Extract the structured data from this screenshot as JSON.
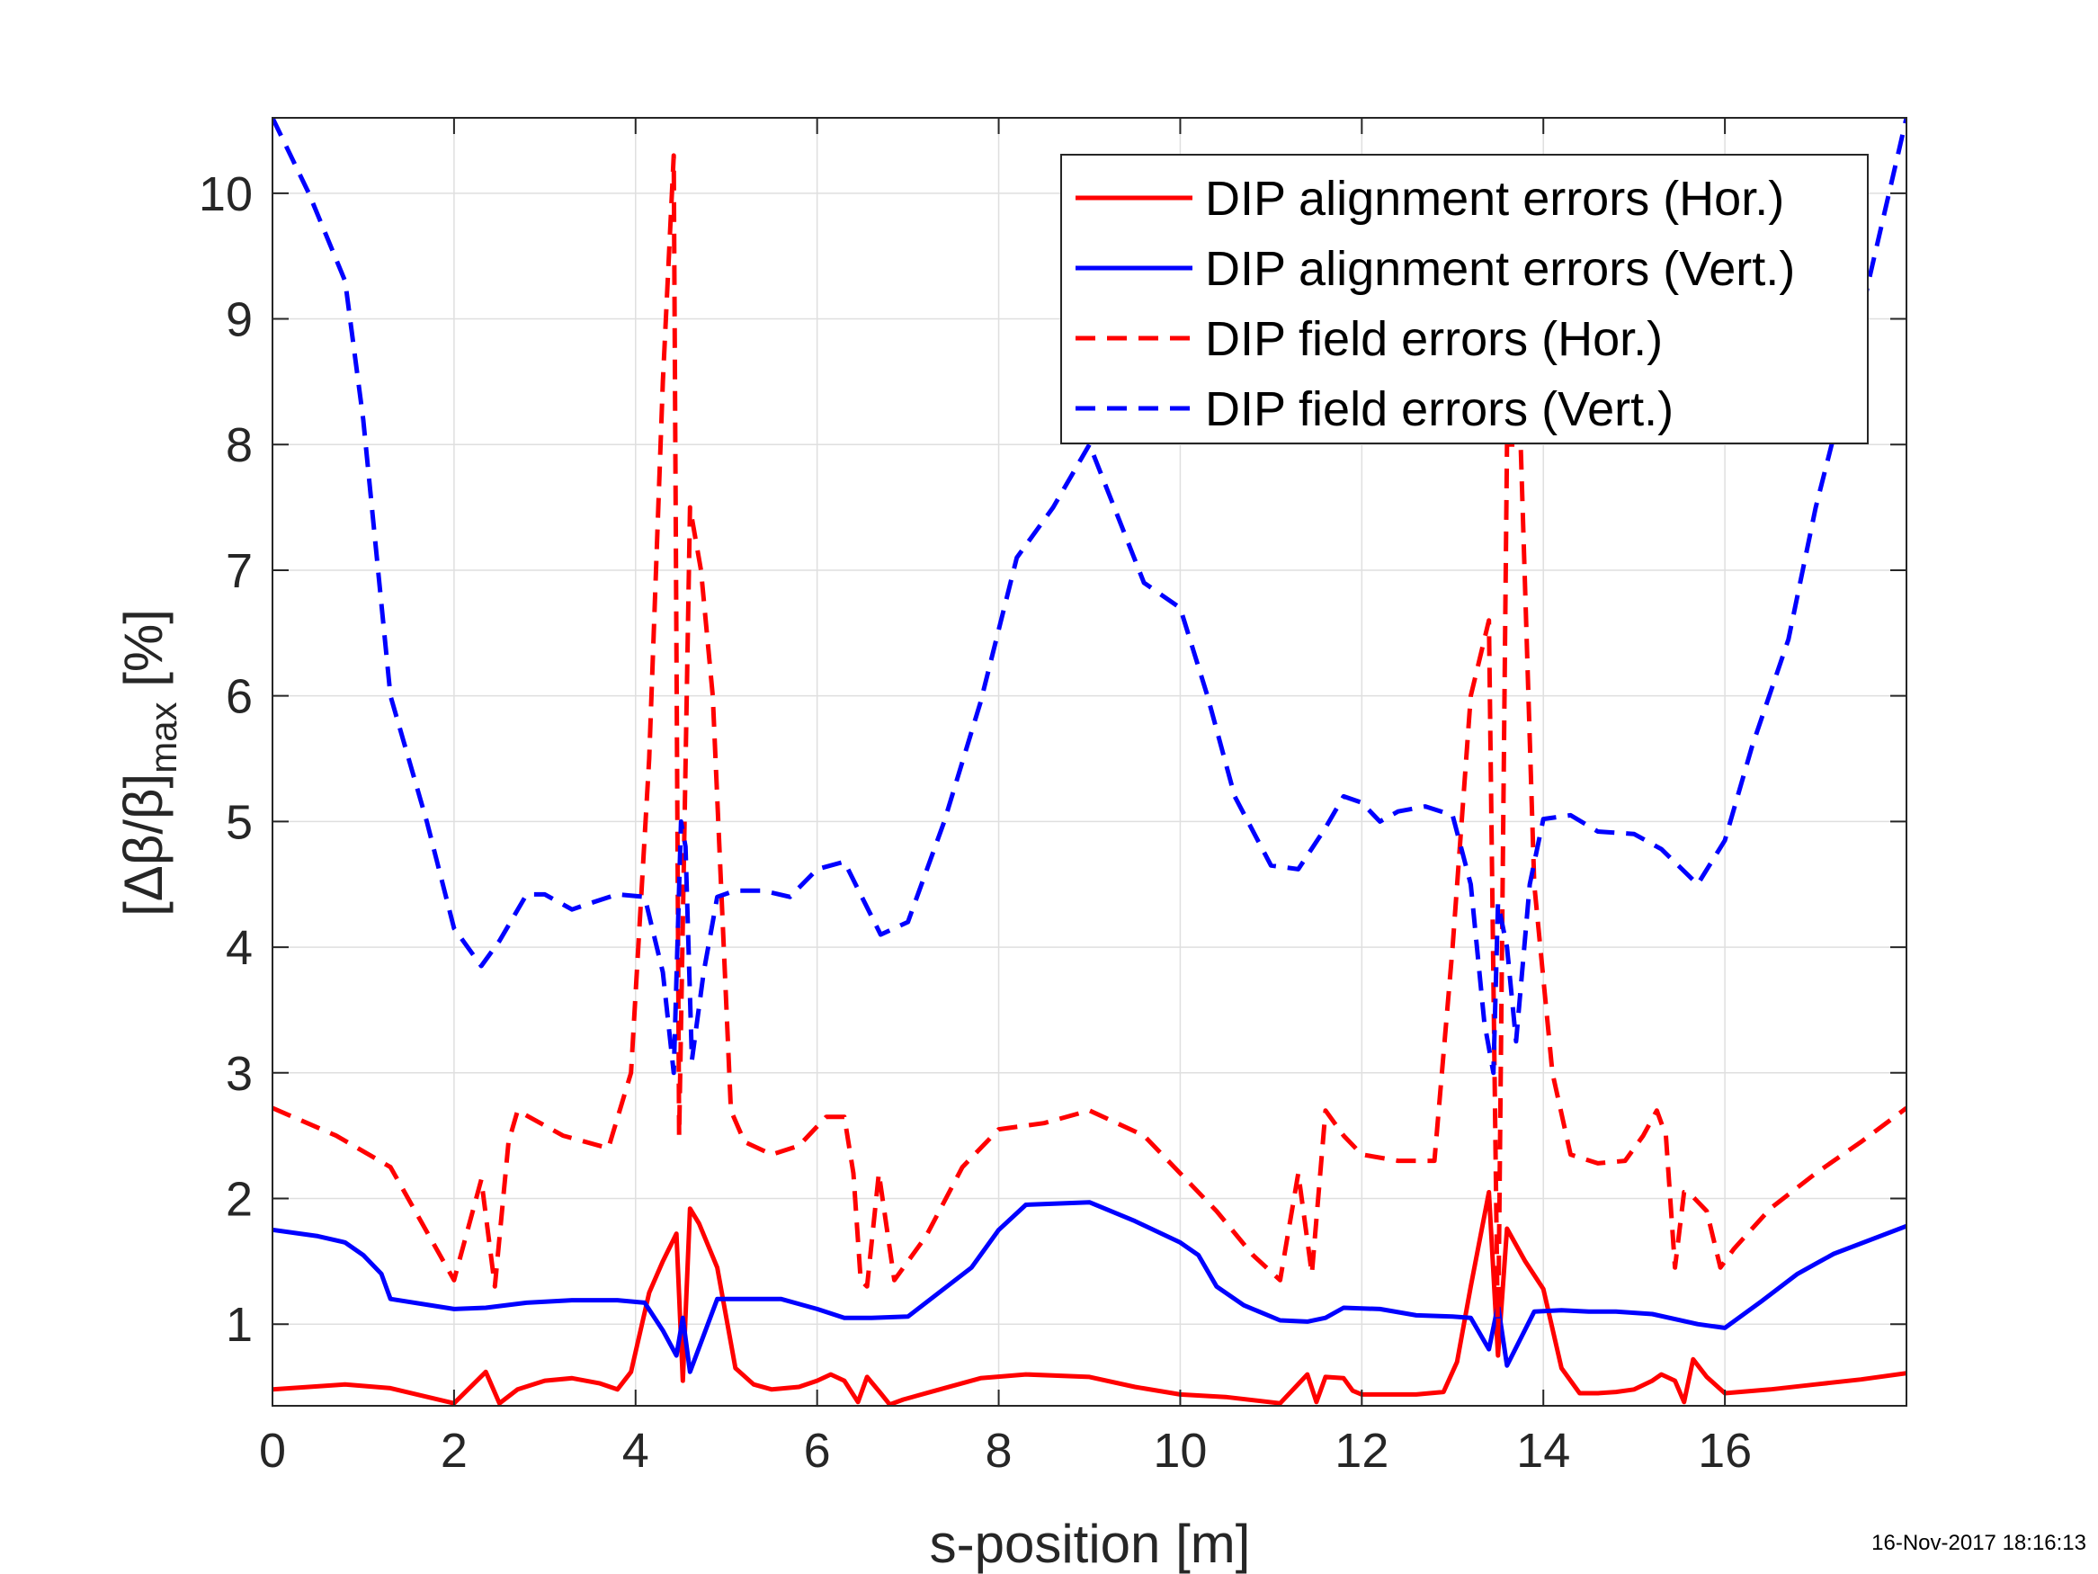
{
  "chart_data": {
    "type": "line",
    "xlabel": "s-position [m]",
    "ylabel_main": "[Δβ/β]",
    "ylabel_sub": "max",
    "ylabel_tail": " [%]",
    "xlim": [
      0,
      18
    ],
    "ylim": [
      0.35,
      10.6
    ],
    "xticks": [
      0,
      2,
      4,
      6,
      8,
      10,
      12,
      14,
      16
    ],
    "yticks": [
      1,
      2,
      3,
      4,
      5,
      6,
      7,
      8,
      9,
      10
    ],
    "grid": true,
    "legend_position": "top-right",
    "timestamp": "16-Nov-2017 18:16:13",
    "series": [
      {
        "name": "DIP alignment errors (Hor.)",
        "color": "#ff0000",
        "style": "solid",
        "x": [
          0,
          0.8,
          1.3,
          2.0,
          2.35,
          2.5,
          2.7,
          3.0,
          3.3,
          3.6,
          3.8,
          3.95,
          4.15,
          4.3,
          4.45,
          4.52,
          4.6,
          4.7,
          4.9,
          5.1,
          5.3,
          5.5,
          5.8,
          6.0,
          6.15,
          6.3,
          6.45,
          6.55,
          6.7,
          6.8,
          6.95,
          7.3,
          7.8,
          8.3,
          9.0,
          9.5,
          10.0,
          10.5,
          11.1,
          11.4,
          11.5,
          11.6,
          11.8,
          11.9,
          12.0,
          12.3,
          12.6,
          12.9,
          13.05,
          13.2,
          13.4,
          13.5,
          13.6,
          13.8,
          14.0,
          14.2,
          14.4,
          14.6,
          14.8,
          15.0,
          15.2,
          15.3,
          15.45,
          15.55,
          15.65,
          15.8,
          16.0,
          16.5,
          17.0,
          17.5,
          18.0
        ],
        "y": [
          0.48,
          0.52,
          0.49,
          0.37,
          0.62,
          0.37,
          0.48,
          0.55,
          0.57,
          0.53,
          0.48,
          0.62,
          1.25,
          1.5,
          1.72,
          0.55,
          1.92,
          1.8,
          1.45,
          0.65,
          0.52,
          0.48,
          0.5,
          0.55,
          0.6,
          0.55,
          0.38,
          0.58,
          0.45,
          0.36,
          0.4,
          0.47,
          0.57,
          0.6,
          0.58,
          0.5,
          0.44,
          0.42,
          0.37,
          0.6,
          0.38,
          0.58,
          0.57,
          0.47,
          0.44,
          0.44,
          0.44,
          0.46,
          0.7,
          1.3,
          2.05,
          0.75,
          1.76,
          1.5,
          1.28,
          0.65,
          0.45,
          0.45,
          0.46,
          0.48,
          0.55,
          0.6,
          0.55,
          0.38,
          0.72,
          0.58,
          0.45,
          0.48,
          0.52,
          0.56,
          0.61
        ]
      },
      {
        "name": "DIP alignment errors (Vert.)",
        "color": "#0000ff",
        "style": "solid",
        "x": [
          0,
          0.5,
          0.8,
          1.0,
          1.2,
          1.3,
          2.0,
          2.35,
          2.8,
          3.3,
          3.8,
          4.1,
          4.3,
          4.45,
          4.52,
          4.6,
          4.9,
          5.3,
          5.6,
          6.0,
          6.3,
          6.6,
          7.0,
          7.7,
          8.0,
          8.3,
          9.0,
          9.5,
          10.0,
          10.2,
          10.4,
          10.7,
          11.1,
          11.4,
          11.6,
          11.8,
          12.2,
          12.6,
          13.0,
          13.2,
          13.4,
          13.5,
          13.6,
          13.9,
          14.2,
          14.5,
          14.8,
          15.2,
          15.7,
          16.0,
          16.4,
          16.8,
          17.0,
          17.2,
          18.0
        ],
        "y": [
          1.75,
          1.7,
          1.65,
          1.55,
          1.4,
          1.2,
          1.12,
          1.13,
          1.17,
          1.19,
          1.19,
          1.17,
          0.95,
          0.75,
          1.05,
          0.62,
          1.2,
          1.2,
          1.2,
          1.12,
          1.05,
          1.05,
          1.06,
          1.45,
          1.75,
          1.95,
          1.97,
          1.82,
          1.65,
          1.55,
          1.3,
          1.15,
          1.03,
          1.02,
          1.05,
          1.13,
          1.12,
          1.07,
          1.06,
          1.05,
          0.8,
          1.15,
          0.67,
          1.1,
          1.11,
          1.1,
          1.1,
          1.08,
          1.0,
          0.97,
          1.18,
          1.4,
          1.48,
          1.56,
          1.78
        ]
      },
      {
        "name": "DIP field errors (Hor.)",
        "color": "#ff0000",
        "style": "dashed",
        "x": [
          0,
          0.7,
          1.3,
          2.0,
          2.3,
          2.45,
          2.6,
          2.7,
          3.2,
          3.7,
          3.95,
          4.15,
          4.3,
          4.42,
          4.48,
          4.6,
          4.72,
          4.85,
          5.05,
          5.2,
          5.5,
          5.8,
          6.1,
          6.3,
          6.4,
          6.48,
          6.55,
          6.68,
          6.85,
          7.2,
          7.6,
          8.0,
          8.5,
          9.0,
          9.6,
          10.0,
          10.4,
          10.8,
          11.1,
          11.3,
          11.45,
          11.6,
          11.8,
          12.0,
          12.4,
          12.8,
          13.0,
          13.2,
          13.4,
          13.5,
          13.6,
          13.75,
          13.9,
          14.1,
          14.3,
          14.6,
          14.9,
          15.1,
          15.25,
          15.35,
          15.45,
          15.55,
          15.6,
          15.8,
          15.95,
          16.1,
          16.5,
          17.0,
          17.5,
          18.0
        ],
        "y": [
          2.72,
          2.5,
          2.25,
          1.35,
          2.15,
          1.3,
          2.45,
          2.7,
          2.5,
          2.4,
          3.0,
          5.5,
          8.5,
          10.3,
          2.5,
          7.5,
          7.0,
          6.0,
          2.7,
          2.45,
          2.35,
          2.42,
          2.65,
          2.65,
          2.2,
          1.35,
          1.3,
          2.2,
          1.35,
          1.7,
          2.25,
          2.55,
          2.6,
          2.7,
          2.5,
          2.2,
          1.9,
          1.55,
          1.35,
          2.2,
          1.4,
          2.7,
          2.5,
          2.35,
          2.3,
          2.3,
          4.0,
          6.0,
          6.6,
          0.8,
          8.0,
          8.0,
          4.5,
          3.0,
          2.35,
          2.28,
          2.3,
          2.5,
          2.7,
          2.5,
          1.45,
          2.05,
          2.05,
          1.9,
          1.45,
          1.6,
          1.92,
          2.2,
          2.45,
          2.72
        ]
      },
      {
        "name": "DIP field errors (Vert.)",
        "color": "#0000ff",
        "style": "dashed",
        "x": [
          0,
          0.4,
          0.8,
          1.0,
          1.3,
          1.7,
          2.0,
          2.3,
          2.5,
          2.8,
          3.0,
          3.3,
          3.5,
          3.8,
          4.1,
          4.3,
          4.42,
          4.5,
          4.55,
          4.62,
          4.75,
          4.9,
          5.1,
          5.4,
          5.7,
          6.0,
          6.3,
          6.7,
          7.0,
          7.4,
          7.8,
          8.2,
          8.6,
          9.0,
          9.3,
          9.6,
          10.0,
          10.3,
          10.6,
          11.0,
          11.3,
          11.6,
          11.8,
          12.0,
          12.2,
          12.4,
          12.7,
          13.0,
          13.2,
          13.35,
          13.45,
          13.5,
          13.6,
          13.7,
          13.85,
          14.0,
          14.3,
          14.6,
          15.0,
          15.3,
          15.7,
          16.0,
          16.3,
          16.7,
          17.0,
          17.3,
          17.6,
          18.0
        ],
        "y": [
          10.6,
          10.0,
          9.3,
          8.2,
          6.0,
          5.0,
          4.15,
          3.85,
          4.05,
          4.42,
          4.42,
          4.3,
          4.35,
          4.42,
          4.4,
          3.8,
          3.0,
          5.0,
          4.8,
          3.1,
          3.8,
          4.4,
          4.45,
          4.45,
          4.4,
          4.62,
          4.68,
          4.1,
          4.2,
          5.0,
          5.95,
          7.1,
          7.5,
          8.0,
          7.45,
          6.9,
          6.7,
          6.0,
          5.2,
          4.65,
          4.62,
          4.95,
          5.2,
          5.15,
          5.0,
          5.08,
          5.12,
          5.05,
          4.5,
          3.4,
          3.0,
          4.35,
          4.0,
          3.25,
          4.5,
          5.02,
          5.05,
          4.92,
          4.9,
          4.78,
          4.5,
          4.85,
          5.6,
          6.45,
          7.5,
          8.35,
          9.35,
          10.6
        ]
      }
    ]
  }
}
